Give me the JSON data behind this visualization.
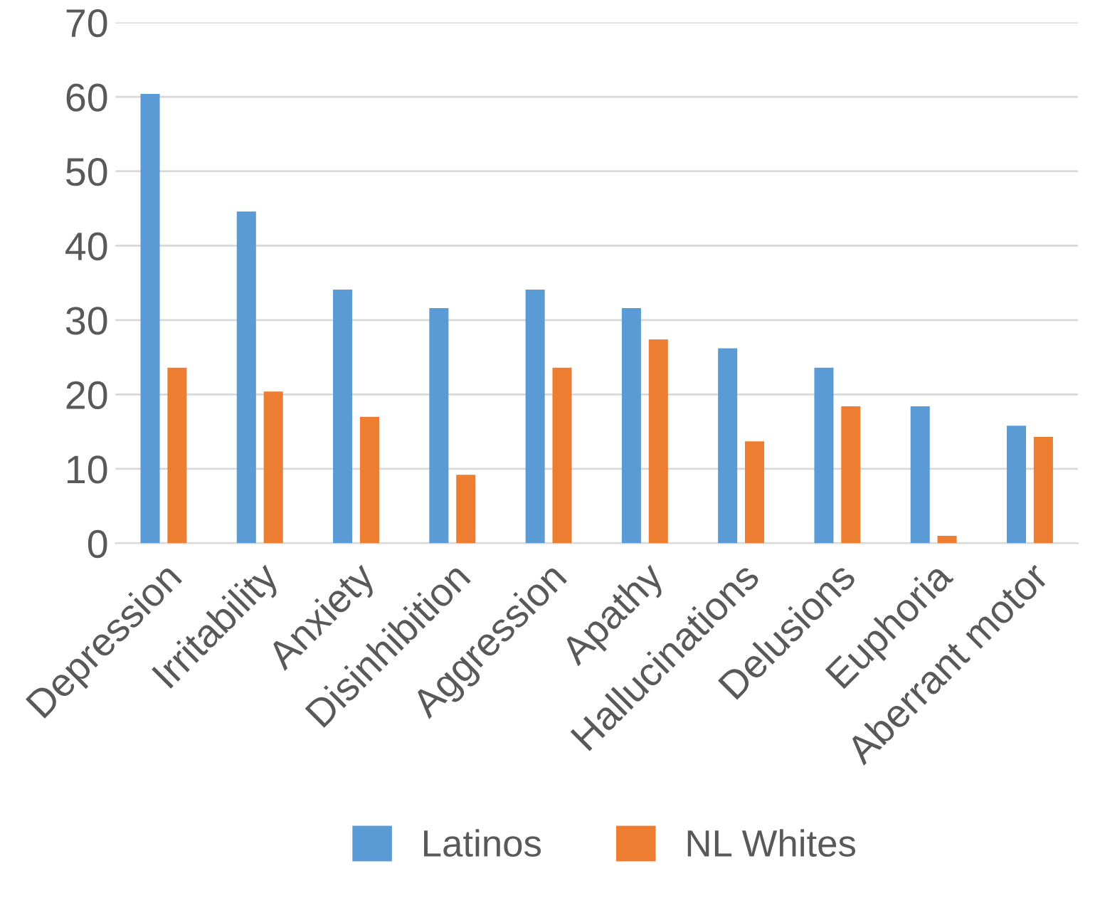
{
  "chart_data": {
    "type": "bar",
    "categories": [
      "Depression",
      "Irritability",
      "Anxiety",
      "Disinhibition",
      "Aggression",
      "Apathy",
      "Hallucinations",
      "Delusions",
      "Euphoria",
      "Aberrant motor"
    ],
    "series": [
      {
        "name": "Latinos",
        "color": "#5b9bd5",
        "values": [
          60.4,
          44.6,
          34.1,
          31.6,
          34.1,
          31.6,
          26.2,
          23.6,
          18.4,
          15.8
        ]
      },
      {
        "name": "NL Whites",
        "color": "#ed7d31",
        "values": [
          23.6,
          20.4,
          17.0,
          9.2,
          23.6,
          27.4,
          13.7,
          18.4,
          1.0,
          14.3
        ]
      }
    ],
    "ylim": [
      0,
      70
    ],
    "yticks": [
      0,
      10,
      20,
      30,
      40,
      50,
      60,
      70
    ],
    "grid": "y",
    "legend": "bottom"
  }
}
